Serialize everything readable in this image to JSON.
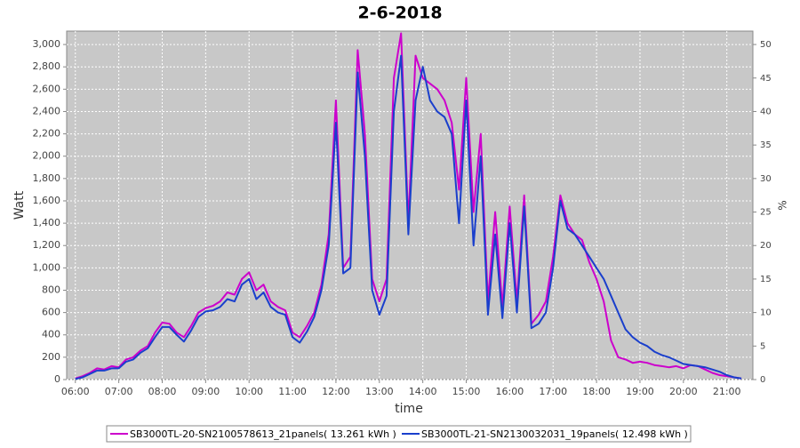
{
  "chart_data": {
    "type": "line",
    "title": "2-6-2018",
    "xlabel": "time",
    "ylabel": "Watt",
    "y2label": "%",
    "x": [
      "06:00",
      "06:10",
      "06:20",
      "06:30",
      "06:40",
      "06:50",
      "07:00",
      "07:10",
      "07:20",
      "07:30",
      "07:40",
      "07:50",
      "08:00",
      "08:10",
      "08:20",
      "08:30",
      "08:40",
      "08:50",
      "09:00",
      "09:10",
      "09:20",
      "09:30",
      "09:40",
      "09:50",
      "10:00",
      "10:10",
      "10:20",
      "10:30",
      "10:40",
      "10:50",
      "11:00",
      "11:10",
      "11:20",
      "11:30",
      "11:40",
      "11:50",
      "12:00",
      "12:10",
      "12:20",
      "12:30",
      "12:40",
      "12:50",
      "13:00",
      "13:10",
      "13:20",
      "13:30",
      "13:40",
      "13:50",
      "14:00",
      "14:10",
      "14:20",
      "14:30",
      "14:40",
      "14:50",
      "15:00",
      "15:10",
      "15:20",
      "15:30",
      "15:40",
      "15:50",
      "16:00",
      "16:10",
      "16:20",
      "16:30",
      "16:40",
      "16:50",
      "17:00",
      "17:10",
      "17:20",
      "17:30",
      "17:40",
      "17:50",
      "18:00",
      "18:10",
      "18:20",
      "18:30",
      "18:40",
      "18:50",
      "19:00",
      "19:10",
      "19:20",
      "19:30",
      "19:40",
      "19:50",
      "20:00",
      "20:10",
      "20:20",
      "20:30",
      "20:40",
      "20:50",
      "21:00",
      "21:10",
      "21:20"
    ],
    "series": [
      {
        "name": "SB3000TL-20-SN2100578613_21panels( 13.261 kWh )",
        "color": "#cc00cc",
        "values": [
          10,
          30,
          60,
          100,
          90,
          120,
          110,
          180,
          200,
          260,
          300,
          420,
          510,
          500,
          420,
          380,
          480,
          600,
          640,
          660,
          700,
          780,
          760,
          900,
          960,
          800,
          850,
          700,
          650,
          620,
          420,
          380,
          480,
          600,
          850,
          1300,
          2500,
          1000,
          1100,
          2950,
          2200,
          900,
          700,
          900,
          2700,
          3100,
          1400,
          2900,
          2700,
          2650,
          2600,
          2500,
          2300,
          1700,
          2700,
          1500,
          2200,
          700,
          1500,
          650,
          1550,
          700,
          1650,
          500,
          580,
          700,
          1100,
          1650,
          1400,
          1300,
          1250,
          1050,
          900,
          700,
          350,
          200,
          180,
          150,
          160,
          150,
          130,
          120,
          110,
          120,
          100,
          130,
          120,
          90,
          60,
          40,
          30,
          20,
          10
        ]
      },
      {
        "name": "SB3000TL-21-SN2130032031_19panels( 12.498 kWh )",
        "color": "#1a3fcc",
        "values": [
          5,
          20,
          50,
          80,
          80,
          100,
          100,
          160,
          180,
          240,
          280,
          380,
          470,
          470,
          400,
          340,
          440,
          560,
          610,
          620,
          650,
          720,
          700,
          850,
          900,
          720,
          780,
          650,
          600,
          580,
          380,
          330,
          430,
          560,
          800,
          1200,
          2300,
          950,
          1000,
          2750,
          2000,
          800,
          580,
          750,
          2400,
          2900,
          1300,
          2500,
          2800,
          2500,
          2400,
          2350,
          2200,
          1400,
          2500,
          1200,
          2000,
          580,
          1300,
          550,
          1400,
          600,
          1550,
          460,
          500,
          600,
          1000,
          1600,
          1350,
          1300,
          1200,
          1100,
          1000,
          900,
          750,
          600,
          450,
          380,
          330,
          300,
          250,
          220,
          200,
          170,
          140,
          130,
          120,
          110,
          90,
          70,
          40,
          20,
          10
        ]
      }
    ],
    "xlim": [
      "05:48",
      "21:36"
    ],
    "xticks": [
      "06:00",
      "07:00",
      "08:00",
      "09:00",
      "10:00",
      "11:00",
      "12:00",
      "13:00",
      "14:00",
      "15:00",
      "16:00",
      "17:00",
      "18:00",
      "19:00",
      "20:00",
      "21:00"
    ],
    "ylim": [
      0,
      3120
    ],
    "yticks": [
      0,
      200,
      400,
      600,
      800,
      {
        "value": 1000,
        "label": "1,000"
      },
      {
        "value": 1200,
        "label": "1,200"
      },
      {
        "value": 1400,
        "label": "1,400"
      },
      {
        "value": 1600,
        "label": "1,600"
      },
      {
        "value": 1800,
        "label": "1,800"
      },
      {
        "value": 2000,
        "label": "2,000"
      },
      {
        "value": 2200,
        "label": "2,200"
      },
      {
        "value": 2400,
        "label": "2,400"
      },
      {
        "value": 2600,
        "label": "2,600"
      },
      {
        "value": 2800,
        "label": "2,800"
      },
      {
        "value": 3000,
        "label": "3,000"
      }
    ],
    "y2lim": [
      0,
      52
    ],
    "y2ticks": [
      0,
      5,
      10,
      15,
      20,
      25,
      30,
      35,
      40,
      45,
      50
    ],
    "grid": true,
    "legend": "bottom"
  }
}
